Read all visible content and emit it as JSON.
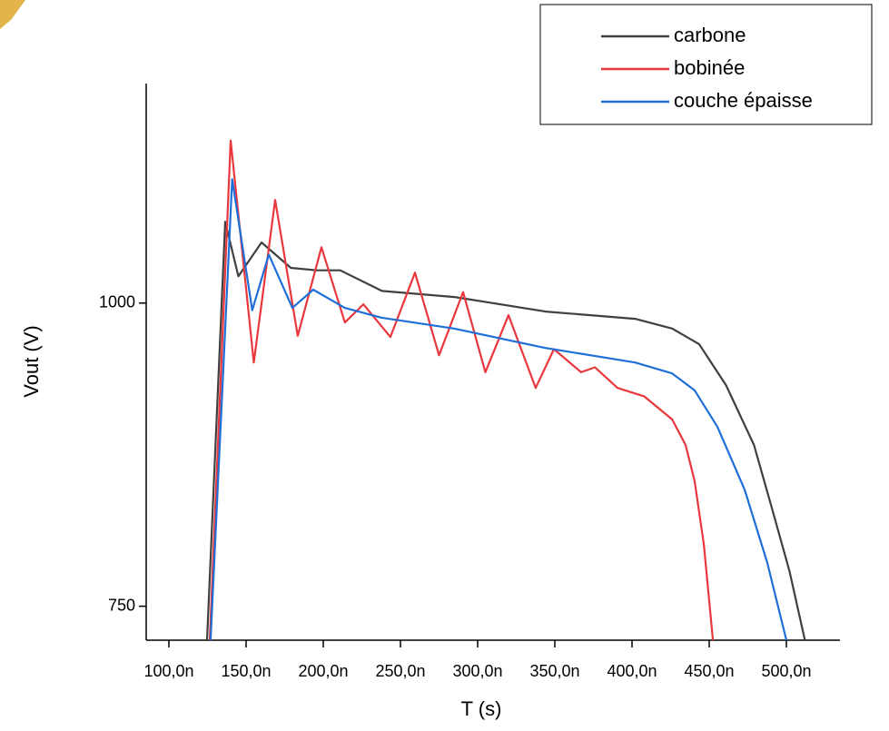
{
  "chart_data": {
    "type": "line",
    "x_label": "T (s)",
    "y_label": "Vout (V)",
    "xlim": [
      8.53e-08,
      5.347e-07
    ],
    "ylim": [
      722,
      1181
    ],
    "xticks": [
      {
        "value": 1e-07,
        "label": "100,0n"
      },
      {
        "value": 1.5e-07,
        "label": "150,0n"
      },
      {
        "value": 2e-07,
        "label": "200,0n"
      },
      {
        "value": 2.5e-07,
        "label": "250,0n"
      },
      {
        "value": 3e-07,
        "label": "300,0n"
      },
      {
        "value": 3.5e-07,
        "label": "350,0n"
      },
      {
        "value": 4e-07,
        "label": "400,0n"
      },
      {
        "value": 4.5e-07,
        "label": "450,0n"
      },
      {
        "value": 5e-07,
        "label": "500,0n"
      }
    ],
    "yticks": [
      750,
      1000
    ],
    "legend": "top-right",
    "series": [
      {
        "name": "carbone",
        "color": "#404040",
        "x": [
          1.247e-07,
          1.365e-07,
          1.45e-07,
          1.6e-07,
          1.79e-07,
          1.96e-07,
          2.11e-07,
          2.38e-07,
          2.85e-07,
          3.44e-07,
          4.02e-07,
          4.26e-07,
          4.435e-07,
          4.61e-07,
          4.79e-07,
          4.906e-07,
          5.02e-07,
          5.12e-07
        ],
        "values": [
          722,
          1067,
          1022,
          1050,
          1029,
          1027,
          1027,
          1010,
          1005,
          993,
          987,
          979,
          966,
          932,
          883,
          831,
          779,
          722
        ]
      },
      {
        "name": "bobinée",
        "color": "#e8373d",
        "x": [
          1.265e-07,
          1.4e-07,
          1.55e-07,
          1.688e-07,
          1.835e-07,
          1.988e-07,
          2.14e-07,
          2.26e-07,
          2.435e-07,
          2.594e-07,
          2.75e-07,
          2.906e-07,
          3.05e-07,
          3.2e-07,
          3.376e-07,
          3.494e-07,
          3.67e-07,
          3.76e-07,
          3.906e-07,
          4.08e-07,
          4.26e-07,
          4.347e-07,
          4.406e-07,
          4.465e-07,
          4.524e-07
        ],
        "values": [
          722,
          1134,
          951,
          1085,
          973,
          1046,
          984,
          999,
          972,
          1025,
          957,
          1009,
          943,
          990,
          930,
          962,
          943,
          947,
          930,
          923,
          904,
          883,
          853,
          801,
          722
        ]
      },
      {
        "name": "couche épaisse",
        "color": "#1f6fd8",
        "x": [
          1.27e-07,
          1.41e-07,
          1.54e-07,
          1.647e-07,
          1.8e-07,
          1.935e-07,
          2.14e-07,
          2.376e-07,
          2.847e-07,
          3.435e-07,
          4.02e-07,
          4.26e-07,
          4.406e-07,
          4.553e-07,
          4.73e-07,
          4.876e-07,
          5e-07
        ],
        "values": [
          722,
          1102,
          994,
          1040,
          996,
          1011,
          996,
          988,
          979,
          963,
          951,
          942,
          928,
          898,
          846,
          786,
          722
        ]
      }
    ]
  }
}
